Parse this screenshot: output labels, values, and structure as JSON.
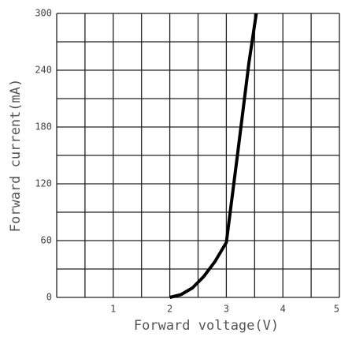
{
  "chart_data": {
    "type": "line",
    "x_label": "Forward voltage(V)",
    "y_label": "Forward current(mA)",
    "x": [
      2.0,
      2.2,
      2.4,
      2.6,
      2.8,
      3.0,
      3.1,
      3.2,
      3.3,
      3.4,
      3.53
    ],
    "series": [
      {
        "name": null,
        "color": "#000000",
        "values": [
          0,
          3,
          10,
          22,
          38,
          58,
          105,
          152,
          200,
          248,
          300
        ]
      }
    ],
    "xlim": [
      0,
      5
    ],
    "xticks": [
      1,
      2,
      3,
      4,
      5
    ],
    "ylim": [
      0,
      300
    ],
    "yticks": [
      0,
      60,
      120,
      180,
      240,
      300
    ],
    "minor_xticks": [
      0.5,
      1.5,
      2.5,
      3.5,
      4.5
    ],
    "minor_yticks": [
      30,
      90,
      150,
      210,
      270
    ],
    "grid": true
  }
}
